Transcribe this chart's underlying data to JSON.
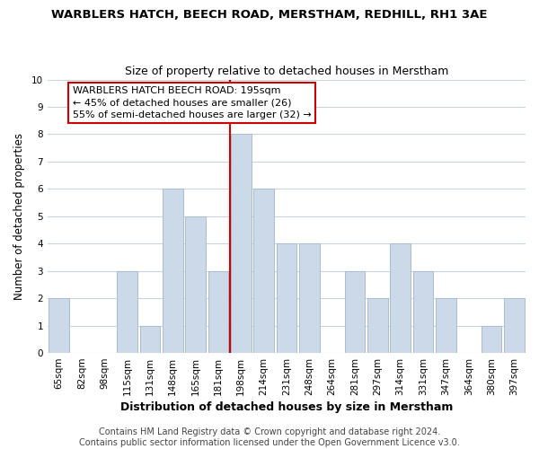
{
  "title": "WARBLERS HATCH, BEECH ROAD, MERSTHAM, REDHILL, RH1 3AE",
  "subtitle": "Size of property relative to detached houses in Merstham",
  "xlabel": "Distribution of detached houses by size in Merstham",
  "ylabel": "Number of detached properties",
  "categories": [
    "65sqm",
    "82sqm",
    "98sqm",
    "115sqm",
    "131sqm",
    "148sqm",
    "165sqm",
    "181sqm",
    "198sqm",
    "214sqm",
    "231sqm",
    "248sqm",
    "264sqm",
    "281sqm",
    "297sqm",
    "314sqm",
    "331sqm",
    "347sqm",
    "364sqm",
    "380sqm",
    "397sqm"
  ],
  "values": [
    2,
    0,
    0,
    3,
    1,
    6,
    5,
    3,
    8,
    6,
    4,
    4,
    0,
    3,
    2,
    4,
    3,
    2,
    0,
    1,
    2
  ],
  "bar_color": "#ccd9e8",
  "bar_edge_color": "#aabcce",
  "highlight_line_color": "#cc0000",
  "highlight_index": 8,
  "ylim": [
    0,
    10
  ],
  "yticks": [
    0,
    1,
    2,
    3,
    4,
    5,
    6,
    7,
    8,
    9,
    10
  ],
  "annotation_title": "WARBLERS HATCH BEECH ROAD: 195sqm",
  "annotation_line1": "← 45% of detached houses are smaller (26)",
  "annotation_line2": "55% of semi-detached houses are larger (32) →",
  "annotation_box_color": "#ffffff",
  "annotation_box_edge_color": "#cc0000",
  "footer_line1": "Contains HM Land Registry data © Crown copyright and database right 2024.",
  "footer_line2": "Contains public sector information licensed under the Open Government Licence v3.0.",
  "background_color": "#ffffff",
  "grid_color": "#c8d4de",
  "title_fontsize": 9.5,
  "subtitle_fontsize": 9,
  "xlabel_fontsize": 9,
  "ylabel_fontsize": 8.5,
  "tick_fontsize": 7.5,
  "annotation_fontsize": 8,
  "footer_fontsize": 7
}
